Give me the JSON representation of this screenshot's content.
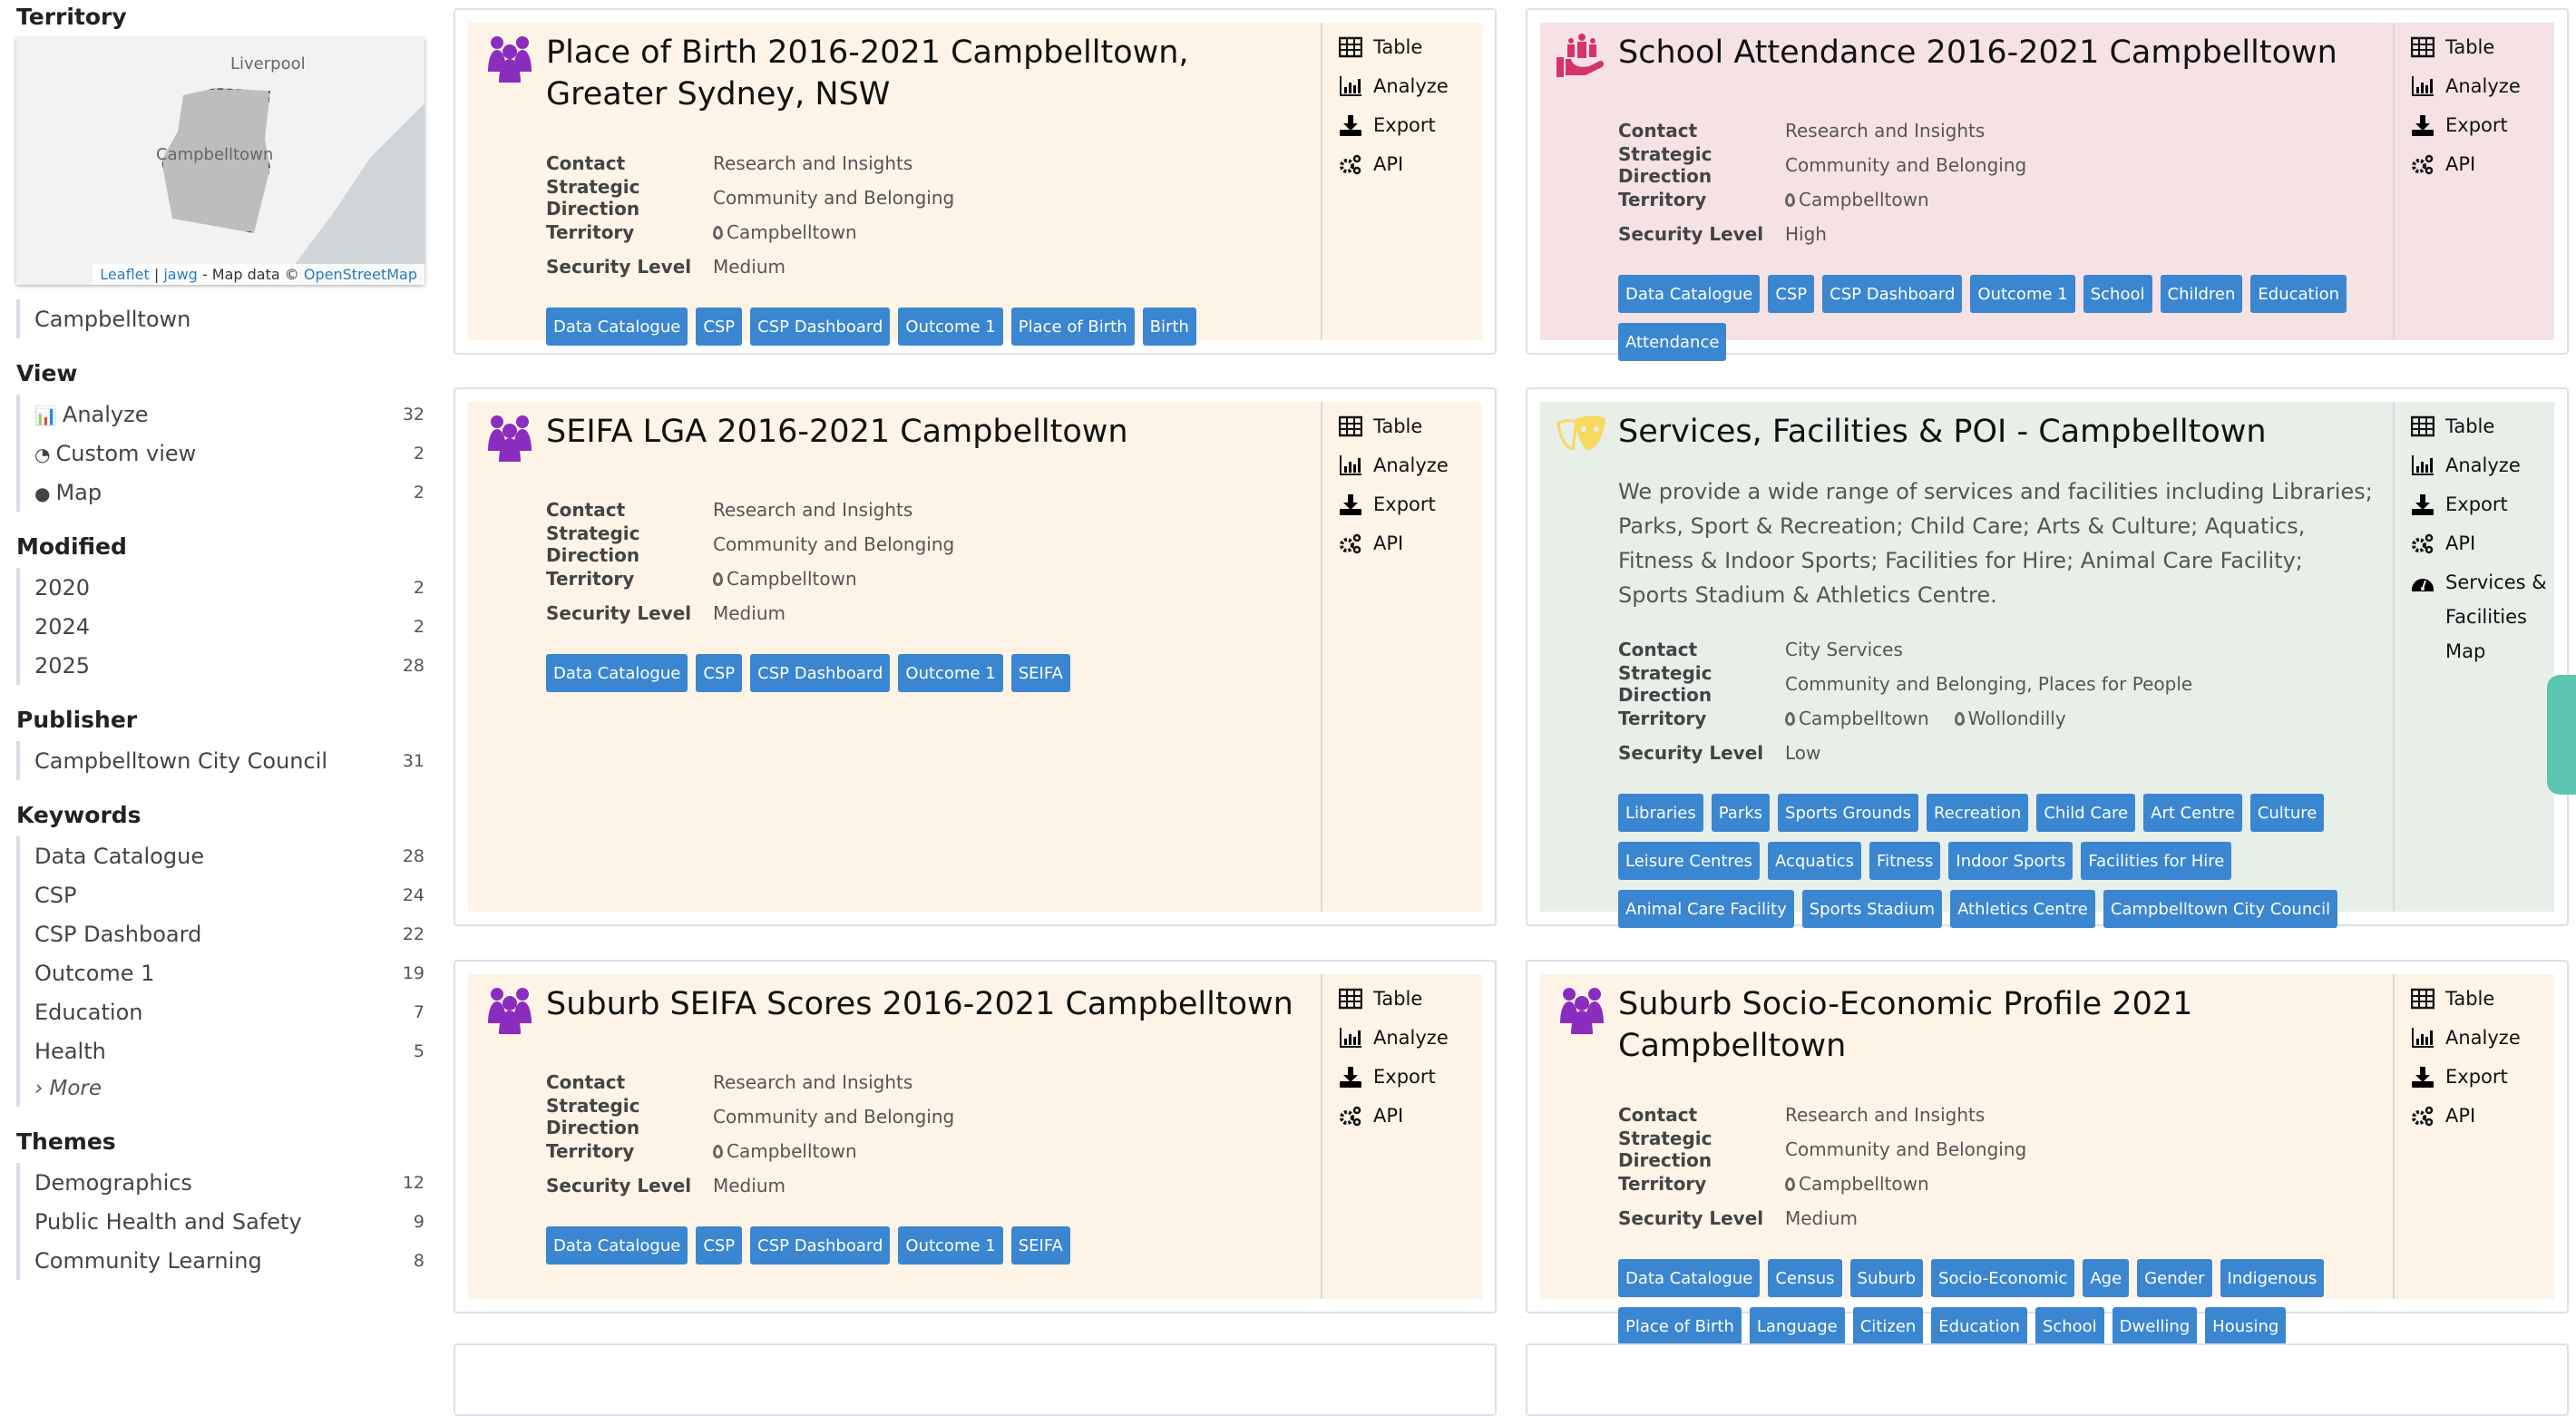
{
  "sidebar": {
    "territory_heading": "Territory",
    "map": {
      "labels": [
        "Liverpool",
        "Campbelltown"
      ],
      "attribution": {
        "leaflet": "Leaflet",
        "jawg": "jawg",
        "mapdata": "- Map data ©",
        "osm": "OpenStreetMap"
      }
    },
    "territory_items": [
      {
        "label": "Campbelltown"
      }
    ],
    "sections": [
      {
        "title": "View",
        "items": [
          {
            "label": "Analyze",
            "icon": "bar-chart-icon",
            "count": "32"
          },
          {
            "label": "Custom view",
            "icon": "dashboard-icon",
            "count": "2"
          },
          {
            "label": "Map",
            "icon": "globe-icon",
            "count": "2"
          }
        ]
      },
      {
        "title": "Modified",
        "items": [
          {
            "label": "2020",
            "count": "2"
          },
          {
            "label": "2024",
            "count": "2"
          },
          {
            "label": "2025",
            "count": "28"
          }
        ]
      },
      {
        "title": "Publisher",
        "items": [
          {
            "label": "Campbelltown City Council",
            "count": "31"
          }
        ]
      },
      {
        "title": "Keywords",
        "items": [
          {
            "label": "Data Catalogue",
            "count": "28"
          },
          {
            "label": "CSP",
            "count": "24"
          },
          {
            "label": "CSP Dashboard",
            "count": "22"
          },
          {
            "label": "Outcome 1",
            "count": "19"
          },
          {
            "label": "Education",
            "count": "7"
          },
          {
            "label": "Health",
            "count": "5"
          }
        ],
        "more": "› More"
      },
      {
        "title": "Themes",
        "items": [
          {
            "label": "Demographics",
            "count": "12"
          },
          {
            "label": "Public Health and Safety",
            "count": "9"
          },
          {
            "label": "Community Learning",
            "count": "8"
          }
        ]
      }
    ]
  },
  "meta_labels": {
    "contact": "Contact",
    "direction": "Strategic Direction",
    "territory": "Territory",
    "security": "Security Level"
  },
  "cards": [
    {
      "title": "Place of Birth 2016-2021 Campbelltown, Greater Sydney, NSW",
      "icon": "people-icon",
      "bg": "#fdf4e7",
      "contact": "Research and Insights",
      "direction": "Community and Belonging",
      "territory": [
        "Campbelltown"
      ],
      "security": "Medium",
      "tags": [
        "Data Catalogue",
        "CSP",
        "CSP Dashboard",
        "Outcome 1",
        "Place of Birth",
        "Birth"
      ],
      "actions": [
        "Table",
        "Analyze",
        "Export",
        "API"
      ]
    },
    {
      "title": "School Attendance 2016-2021 Campbelltown",
      "icon": "community-hand-icon",
      "bg": "#f6e2e5",
      "contact": "Research and Insights",
      "direction": "Community and Belonging",
      "territory": [
        "Campbelltown"
      ],
      "security": "High",
      "tags": [
        "Data Catalogue",
        "CSP",
        "CSP Dashboard",
        "Outcome 1",
        "School",
        "Children",
        "Education",
        "Attendance"
      ],
      "actions": [
        "Table",
        "Analyze",
        "Export",
        "API"
      ]
    },
    {
      "title": "SEIFA LGA 2016-2021 Campbelltown",
      "icon": "people-icon",
      "bg": "#fdf4e7",
      "contact": "Research and Insights",
      "direction": "Community and Belonging",
      "territory": [
        "Campbelltown"
      ],
      "security": "Medium",
      "tags": [
        "Data Catalogue",
        "CSP",
        "CSP Dashboard",
        "Outcome 1",
        "SEIFA"
      ],
      "actions": [
        "Table",
        "Analyze",
        "Export",
        "API"
      ]
    },
    {
      "title": "Services, Facilities & POI - Campbelltown",
      "icon": "theatre-masks-icon",
      "bg": "#e8efe9",
      "description": "We provide a wide range of services and facilities including Libraries; Parks, Sport & Recreation; Child Care; Arts & Culture; Aquatics, Fitness & Indoor Sports; Facilities for Hire; Animal Care Facility; Sports Stadium & Athletics Centre.",
      "contact": "City Services",
      "direction": "Community and Belonging, Places for People",
      "territory": [
        "Campbelltown",
        "Wollondilly"
      ],
      "security": "Low",
      "tags": [
        "Libraries",
        "Parks",
        "Sports Grounds",
        "Recreation",
        "Child Care",
        "Art Centre",
        "Culture",
        "Leisure Centres",
        "Acquatics",
        "Fitness",
        "Indoor Sports",
        "Facilities for Hire",
        "Animal Care Facility",
        "Sports Stadium",
        "Athletics Centre",
        "Campbelltown City Council"
      ],
      "actions": [
        "Table",
        "Analyze",
        "Export",
        "API",
        "Services & Facilities Map"
      ]
    },
    {
      "title": "Suburb SEIFA Scores 2016-2021 Campbelltown",
      "icon": "people-icon",
      "bg": "#fdf4e7",
      "contact": "Research and Insights",
      "direction": "Community and Belonging",
      "territory": [
        "Campbelltown"
      ],
      "security": "Medium",
      "tags": [
        "Data Catalogue",
        "CSP",
        "CSP Dashboard",
        "Outcome 1",
        "SEIFA"
      ],
      "actions": [
        "Table",
        "Analyze",
        "Export",
        "API"
      ]
    },
    {
      "title": "Suburb Socio-Economic Profile 2021 Campbelltown",
      "icon": "people-icon",
      "bg": "#fdf4e7",
      "contact": "Research and Insights",
      "direction": "Community and Belonging",
      "territory": [
        "Campbelltown"
      ],
      "security": "Medium",
      "tags": [
        "Data Catalogue",
        "Census",
        "Suburb",
        "Socio-Economic",
        "Age",
        "Gender",
        "Indigenous",
        "Place of Birth",
        "Language",
        "Citizen",
        "Education",
        "School",
        "Dwelling",
        "Housing"
      ],
      "actions": [
        "Table",
        "Analyze",
        "Export",
        "API"
      ]
    }
  ],
  "colors": {
    "tag": "#3a86d0",
    "people_icon": "#8a2dbf",
    "community_icon": "#d6336c",
    "masks_icon": "#f7d95e",
    "float_tab": "#5cc6b0"
  }
}
